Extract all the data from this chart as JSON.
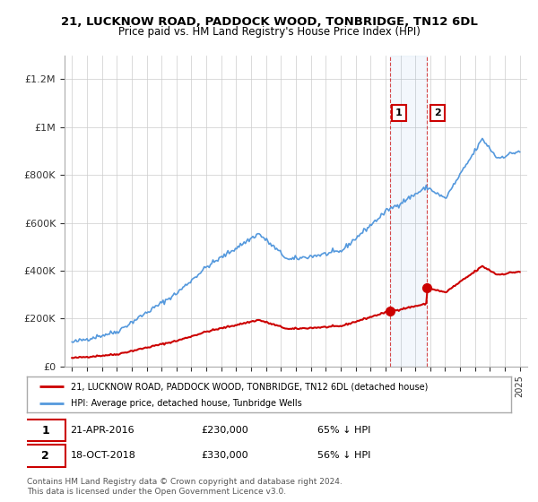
{
  "title1": "21, LUCKNOW ROAD, PADDOCK WOOD, TONBRIDGE, TN12 6DL",
  "title2": "Price paid vs. HM Land Registry's House Price Index (HPI)",
  "background_color": "#ffffff",
  "grid_color": "#cccccc",
  "hpi_color": "#5599dd",
  "price_color": "#cc0000",
  "sale1_year": 2016.31,
  "sale1_price": 230000,
  "sale2_year": 2018.79,
  "sale2_price": 330000,
  "legend_label_price": "21, LUCKNOW ROAD, PADDOCK WOOD, TONBRIDGE, TN12 6DL (detached house)",
  "legend_label_hpi": "HPI: Average price, detached house, Tunbridge Wells",
  "footer": "Contains HM Land Registry data © Crown copyright and database right 2024.\nThis data is licensed under the Open Government Licence v3.0.",
  "ylim_max": 1300000,
  "yticks": [
    0,
    200000,
    400000,
    600000,
    800000,
    1000000,
    1200000
  ],
  "ytick_labels": [
    "£0",
    "£200K",
    "£400K",
    "£600K",
    "£800K",
    "£1M",
    "£1.2M"
  ]
}
